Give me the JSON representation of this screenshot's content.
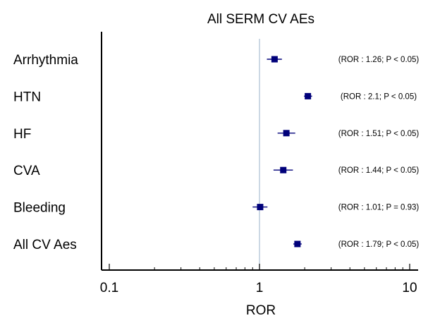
{
  "chart_data": {
    "type": "forest",
    "title": "All SERM CV AEs",
    "xlabel": "ROR",
    "ylabel": "",
    "x_scale": "log",
    "xlim": [
      0.09,
      11
    ],
    "reference_line": 1,
    "x_ticks": [
      {
        "value": 0.1,
        "label": "0.1"
      },
      {
        "value": 1,
        "label": "1"
      },
      {
        "value": 10,
        "label": "10"
      }
    ],
    "grid": false,
    "marker_color": "#00007a",
    "reference_line_color": "#a9bfd1",
    "rows": [
      {
        "category": "Arrhythmia",
        "ror": 1.26,
        "ci_low": 1.12,
        "ci_high": 1.41,
        "annotation": "(ROR : 1.26; P < 0.05)"
      },
      {
        "category": "HTN",
        "ror": 2.1,
        "ci_low": 1.98,
        "ci_high": 2.24,
        "annotation": "(ROR : 2.1; P < 0.05)"
      },
      {
        "category": "HF",
        "ror": 1.51,
        "ci_low": 1.32,
        "ci_high": 1.73,
        "annotation": "(ROR : 1.51; P < 0.05)"
      },
      {
        "category": "CVA",
        "ror": 1.44,
        "ci_low": 1.24,
        "ci_high": 1.67,
        "annotation": "(ROR : 1.44; P < 0.05)"
      },
      {
        "category": "Bleeding",
        "ror": 1.01,
        "ci_low": 0.9,
        "ci_high": 1.13,
        "annotation": "(ROR : 1.01; P = 0.93)"
      },
      {
        "category": "All CV Aes",
        "ror": 1.79,
        "ci_low": 1.68,
        "ci_high": 1.91,
        "annotation": "(ROR : 1.79; P < 0.05)"
      }
    ]
  }
}
